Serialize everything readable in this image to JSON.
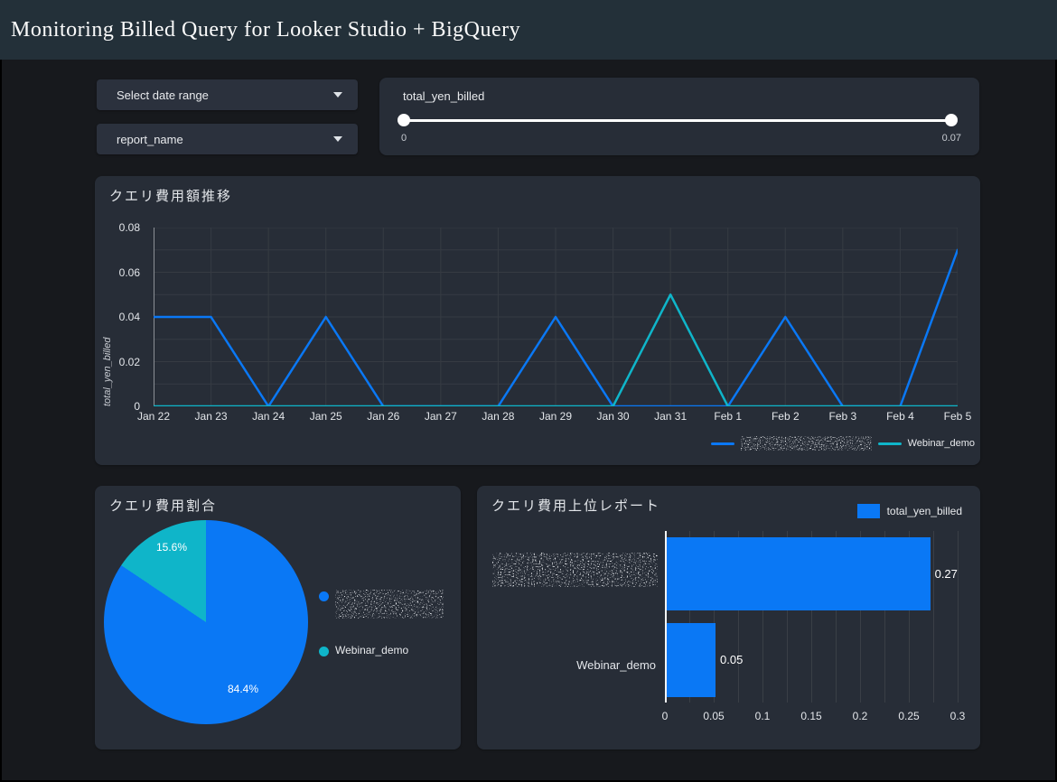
{
  "header": {
    "title": "Monitoring Billed Query for Looker Studio + BigQuery"
  },
  "filters": {
    "date_range": {
      "label": "Select date range"
    },
    "report_name": {
      "label": "report_name"
    }
  },
  "slider": {
    "label": "total_yen_billed",
    "min_label": "0",
    "max_label": "0.07"
  },
  "colors": {
    "blue": "#0a78f5",
    "teal": "#0fb5c9",
    "card": "#272d37",
    "grid": "#363b43"
  },
  "chart_data": [
    {
      "type": "line",
      "title": "クエリ費用額推移",
      "ylabel": "total_yen_billed",
      "categories": [
        "Jan 22",
        "Jan 23",
        "Jan 24",
        "Jan 25",
        "Jan 26",
        "Jan 27",
        "Jan 28",
        "Jan 29",
        "Jan 30",
        "Jan 31",
        "Feb 1",
        "Feb 2",
        "Feb 3",
        "Feb 4",
        "Feb 5"
      ],
      "y_ticks": [
        "0.08",
        "0.06",
        "0.04",
        "0.02",
        "0"
      ],
      "ylim": [
        0,
        0.08
      ],
      "y_minor_step": 0.01,
      "grid": true,
      "legend_position": "bottom-right",
      "series": [
        {
          "name": "[redacted]",
          "redacted": true,
          "color": "#0a78f5",
          "values": [
            0.04,
            0.04,
            0,
            0.04,
            0,
            0,
            0,
            0.04,
            0,
            0,
            0,
            0.04,
            0,
            0,
            0.07
          ]
        },
        {
          "name": "Webinar_demo",
          "redacted": false,
          "color": "#0fb5c9",
          "values": [
            0,
            0,
            0,
            0,
            0,
            0,
            0,
            0,
            0,
            0.05,
            0,
            0,
            0,
            0,
            0
          ]
        }
      ]
    },
    {
      "type": "pie",
      "title": "クエリ費用割合",
      "slices": [
        {
          "name": "[redacted]",
          "redacted": true,
          "value": 84.4,
          "label": "84.4%",
          "color": "#0a78f5"
        },
        {
          "name": "Webinar_demo",
          "redacted": false,
          "value": 15.6,
          "label": "15.6%",
          "color": "#0fb5c9"
        }
      ]
    },
    {
      "type": "bar",
      "orientation": "horizontal",
      "title": "クエリ費用上位レポート",
      "legend": "total_yen_billed",
      "categories": [
        "[redacted]",
        "Webinar_demo"
      ],
      "values": [
        0.27,
        0.05
      ],
      "value_labels": [
        "0.27",
        "0.05"
      ],
      "x_ticks": [
        "0",
        "0.05",
        "0.1",
        "0.15",
        "0.2",
        "0.25",
        "0.3"
      ],
      "xlim": [
        0,
        0.3
      ],
      "x_minor_step": 0.025,
      "bar_color": "#0a78f5"
    }
  ]
}
